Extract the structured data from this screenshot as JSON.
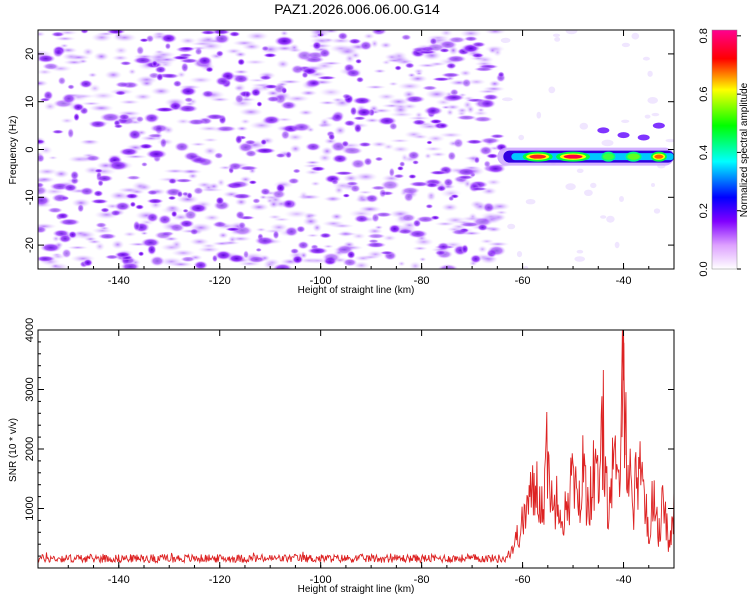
{
  "title": "PAZ1.2026.006.06.00.G14",
  "chart_data": [
    {
      "type": "heatmap",
      "name": "spectrogram",
      "xlabel": "Height of straight line (km)",
      "ylabel": "Frequency (Hz)",
      "xlim": [
        -156,
        -30
      ],
      "ylim": [
        -25,
        25
      ],
      "xticks": [
        -140,
        -120,
        -100,
        -80,
        -60,
        -40
      ],
      "yticks": [
        -20,
        -10,
        0,
        10,
        20
      ],
      "noise_region_x": [
        -156,
        -64
      ],
      "noise_region_typical_amplitude": 0.15,
      "signal": {
        "x_start": -65,
        "x_end": -30,
        "frequency_hz": -1.5,
        "peak_amplitude": 0.82,
        "peaks_at_x": [
          -57,
          -50
        ]
      },
      "colorbar": {
        "label": "Normalized spectral amplitude",
        "range": [
          0.0,
          0.82
        ],
        "ticks": [
          0.0,
          0.2,
          0.4,
          0.6,
          0.8
        ],
        "colors": [
          "#ffffff",
          "#cc66ff",
          "#0000ff",
          "#00ffff",
          "#00ff00",
          "#ffff00",
          "#ff0000",
          "#ff0090"
        ]
      }
    },
    {
      "type": "line",
      "name": "snr",
      "xlabel": "Height of straight line (km)",
      "ylabel": "SNR (10 * v/v)",
      "xlim": [
        -156,
        -30
      ],
      "ylim": [
        0,
        4000
      ],
      "xticks": [
        -140,
        -120,
        -100,
        -80,
        -60,
        -40
      ],
      "yticks": [
        1000,
        2000,
        3000,
        4000
      ],
      "color": "#dd2222",
      "noise_floor": 150,
      "rise_x": [
        -64,
        -60
      ],
      "x": [
        -156,
        -64,
        -62,
        -60,
        -59,
        -58,
        -57,
        -56,
        -55,
        -54,
        -53,
        -52,
        -51,
        -50,
        -49,
        -48,
        -47,
        -46,
        -45,
        -44,
        -43,
        -42,
        -41,
        -40,
        -39,
        -38,
        -37,
        -36,
        -35,
        -34,
        -33,
        -32,
        -31,
        -30
      ],
      "y": [
        150,
        150,
        400,
        900,
        1300,
        1500,
        1700,
        1200,
        2500,
        1000,
        1800,
        900,
        1400,
        1900,
        1100,
        2000,
        1300,
        1900,
        1600,
        2800,
        1200,
        2100,
        1500,
        4000,
        2100,
        1300,
        2200,
        1800,
        500,
        1700,
        700,
        1400,
        400,
        1100
      ]
    }
  ]
}
